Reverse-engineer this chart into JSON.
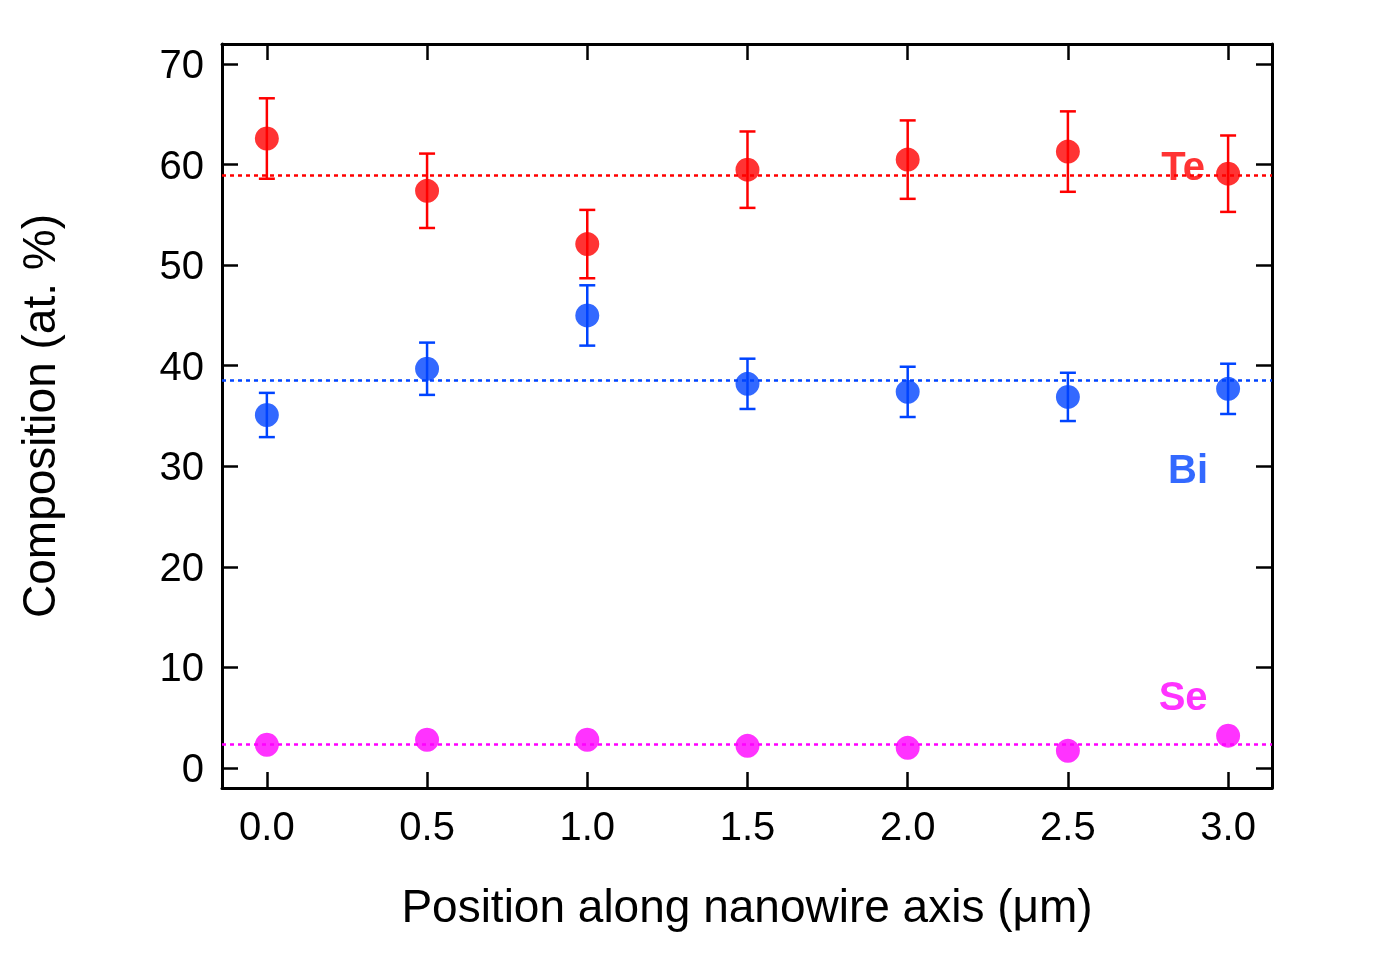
{
  "chart_data": {
    "type": "scatter",
    "xlabel": "Position along nanowire axis (μm)",
    "ylabel": "Composition (at. %)",
    "x": [
      0,
      0.5,
      1,
      1.5,
      2,
      2.5,
      3
    ],
    "series": [
      {
        "name": "Te",
        "color": "#ff0000",
        "values": [
          62.6,
          57.4,
          52.1,
          59.5,
          60.5,
          61.3,
          59.1
        ],
        "errors": [
          4,
          3.7,
          3.4,
          3.8,
          3.9,
          4,
          3.8
        ]
      },
      {
        "name": "Bi",
        "color": "#0044ff",
        "values": [
          35.1,
          39.7,
          45.0,
          38.2,
          37.4,
          36.9,
          37.7
        ],
        "errors": [
          2.2,
          2.6,
          3,
          2.5,
          2.5,
          2.4,
          2.5
        ]
      },
      {
        "name": "Se",
        "color": "#ff00ff",
        "values": [
          2.3,
          2.8,
          2.8,
          2.2,
          2.0,
          1.7,
          3.2
        ]
      }
    ],
    "ref_lines": [
      {
        "axis": "y",
        "value": 58.9,
        "color": "#ff0000",
        "line_style": "dotted"
      },
      {
        "axis": "y",
        "value": 38.6,
        "color": "#0044ff",
        "line_style": "dotted"
      },
      {
        "axis": "y",
        "value": 2.4,
        "color": "#ff00ff",
        "line_style": "dotted"
      }
    ],
    "xlim": [
      -0.14,
      3.137
    ],
    "ylim": [
      -2,
      72
    ],
    "xticks": [
      {
        "value": 0,
        "label": "0.0"
      },
      {
        "value": 0.5,
        "label": "0.5"
      },
      {
        "value": 1,
        "label": "1.0"
      },
      {
        "value": 1.5,
        "label": "1.5"
      },
      {
        "value": 2,
        "label": "2.0"
      },
      {
        "value": 2.5,
        "label": "2.5"
      },
      {
        "value": 3,
        "label": "3.0"
      }
    ],
    "yticks": [
      0,
      10,
      20,
      30,
      40,
      50,
      60,
      70
    ],
    "grid": false,
    "legend": false,
    "marker": "circle"
  }
}
